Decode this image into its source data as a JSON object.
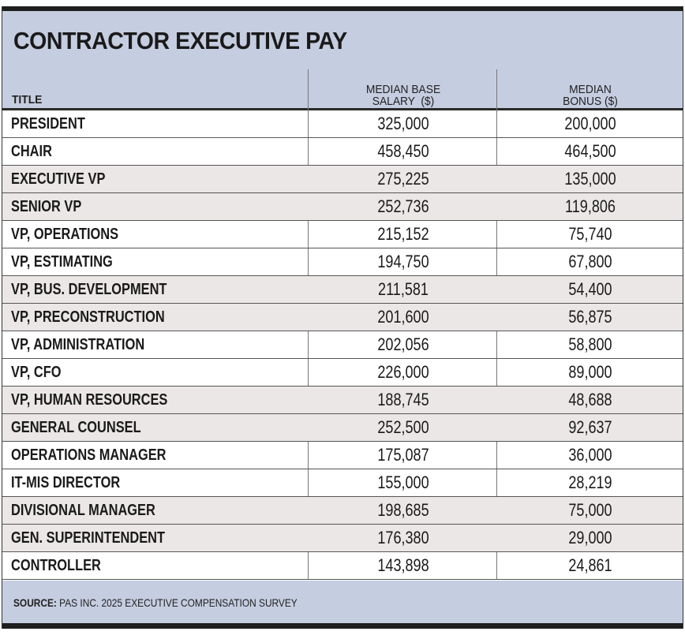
{
  "title": "CONTRACTOR EXECUTIVE PAY",
  "chart_data": {
    "type": "table",
    "title": "CONTRACTOR EXECUTIVE PAY",
    "columns": [
      "TITLE",
      "MEDIAN BASE SALARY ($)",
      "MEDIAN BONUS ($)"
    ],
    "rows": [
      [
        "PRESIDENT",
        "325,000",
        "200,000"
      ],
      [
        "CHAIR",
        "458,450",
        "464,500"
      ],
      [
        "EXECUTIVE VP",
        "275,225",
        "135,000"
      ],
      [
        "SENIOR VP",
        "252,736",
        "119,806"
      ],
      [
        "VP, OPERATIONS",
        "215,152",
        "75,740"
      ],
      [
        "VP, ESTIMATING",
        "194,750",
        "67,800"
      ],
      [
        "VP, BUS. DEVELOPMENT",
        "211,581",
        "54,400"
      ],
      [
        "VP, PRECONSTRUCTION",
        "201,600",
        "56,875"
      ],
      [
        "VP, ADMINISTRATION",
        "202,056",
        "58,800"
      ],
      [
        "VP, CFO",
        "226,000",
        "89,000"
      ],
      [
        "VP, HUMAN RESOURCES",
        "188,745",
        "48,688"
      ],
      [
        "GENERAL COUNSEL",
        "252,500",
        "92,637"
      ],
      [
        "OPERATIONS MANAGER",
        "175,087",
        "36,000"
      ],
      [
        "IT-MIS DIRECTOR",
        "155,000",
        "28,219"
      ],
      [
        "DIVISIONAL MANAGER",
        "198,685",
        "75,000"
      ],
      [
        "GEN. SUPERINTENDENT",
        "176,380",
        "29,000"
      ],
      [
        "CONTROLLER",
        "143,898",
        "24,861"
      ]
    ]
  },
  "headers": {
    "title": "TITLE",
    "base_line1": "MEDIAN BASE",
    "base_line2": "SALARY  ($)",
    "bonus_line1": "MEDIAN",
    "bonus_line2": "BONUS ($)"
  },
  "source": {
    "label": "SOURCE:",
    "text": " PAS INC. 2025 EXECUTIVE COMPENSATION SURVEY"
  },
  "colors": {
    "header_bg": "#c5cde0",
    "row_shade": "#ebe7e6",
    "bar": "#1e1e1e"
  }
}
